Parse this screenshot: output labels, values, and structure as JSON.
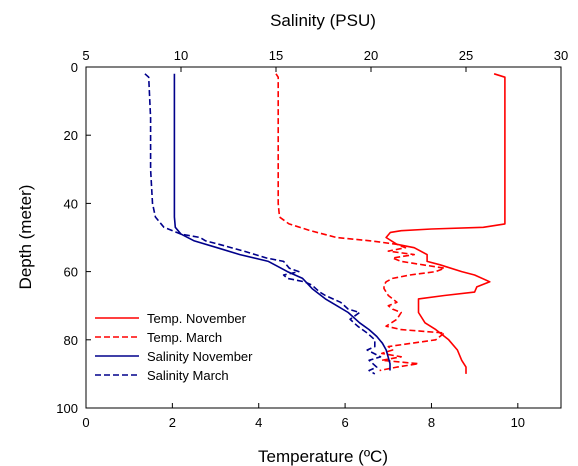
{
  "chart_data": {
    "type": "line",
    "orientation": "depth-profile",
    "y_axis": {
      "label": "Depth (meter)",
      "range": [
        0,
        100
      ],
      "inverted": true,
      "ticks": [
        0,
        20,
        40,
        60,
        80,
        100
      ]
    },
    "x_axis_bottom": {
      "label": "Temperature (ºC)",
      "range": [
        0,
        11
      ],
      "ticks": [
        0,
        2,
        4,
        6,
        8,
        10
      ]
    },
    "x_axis_top": {
      "label": "Salinity (PSU)",
      "range": [
        5,
        30
      ],
      "ticks": [
        5,
        10,
        15,
        20,
        25,
        30
      ]
    },
    "grid": false,
    "legend_position": "bottom-left",
    "series": [
      {
        "name": "Temp. November",
        "axis": "bottom",
        "color": "#ff0000",
        "dash": "solid",
        "points": [
          [
            9.45,
            2
          ],
          [
            9.7,
            3
          ],
          [
            9.7,
            20
          ],
          [
            9.7,
            40
          ],
          [
            9.7,
            46
          ],
          [
            9.2,
            47
          ],
          [
            8.0,
            47.5
          ],
          [
            7.3,
            48
          ],
          [
            7.05,
            48.5
          ],
          [
            6.95,
            50
          ],
          [
            7.2,
            52
          ],
          [
            7.6,
            53
          ],
          [
            7.9,
            55
          ],
          [
            7.9,
            57
          ],
          [
            8.2,
            58
          ],
          [
            8.7,
            60
          ],
          [
            9.0,
            61
          ],
          [
            9.35,
            63
          ],
          [
            9.05,
            64.5
          ],
          [
            9.0,
            66
          ],
          [
            8.3,
            67
          ],
          [
            7.7,
            68
          ],
          [
            7.7,
            72
          ],
          [
            7.85,
            75
          ],
          [
            8.1,
            77
          ],
          [
            8.4,
            80
          ],
          [
            8.6,
            83
          ],
          [
            8.7,
            86
          ],
          [
            8.8,
            88
          ],
          [
            8.8,
            90
          ]
        ]
      },
      {
        "name": "Temp. March",
        "axis": "bottom",
        "color": "#ff0000",
        "dash": "dashed",
        "points": [
          [
            4.4,
            2
          ],
          [
            4.45,
            3
          ],
          [
            4.45,
            20
          ],
          [
            4.45,
            40
          ],
          [
            4.48,
            44
          ],
          [
            4.7,
            46
          ],
          [
            5.2,
            48
          ],
          [
            5.8,
            50
          ],
          [
            6.6,
            51
          ],
          [
            7.2,
            52
          ],
          [
            7.4,
            53
          ],
          [
            7.0,
            54
          ],
          [
            7.6,
            55
          ],
          [
            7.1,
            56
          ],
          [
            7.3,
            57
          ],
          [
            7.8,
            58
          ],
          [
            8.3,
            59
          ],
          [
            8.1,
            60
          ],
          [
            7.5,
            61
          ],
          [
            7.1,
            62
          ],
          [
            6.95,
            63
          ],
          [
            6.9,
            64
          ],
          [
            6.9,
            65
          ],
          [
            7.0,
            67
          ],
          [
            7.2,
            69
          ],
          [
            7.0,
            70
          ],
          [
            7.1,
            71
          ],
          [
            7.3,
            72
          ],
          [
            7.2,
            74
          ],
          [
            6.95,
            76
          ],
          [
            7.3,
            77
          ],
          [
            8.3,
            78
          ],
          [
            8.1,
            80
          ],
          [
            7.0,
            82
          ],
          [
            7.1,
            83
          ],
          [
            6.85,
            84
          ],
          [
            7.3,
            85
          ],
          [
            6.85,
            86
          ],
          [
            7.7,
            87
          ],
          [
            7.2,
            88
          ],
          [
            6.8,
            89
          ]
        ]
      },
      {
        "name": "Salinity November",
        "axis": "top",
        "color": "#00008b",
        "dash": "solid",
        "points": [
          [
            9.65,
            2
          ],
          [
            9.65,
            10
          ],
          [
            9.65,
            30
          ],
          [
            9.65,
            44
          ],
          [
            9.7,
            47
          ],
          [
            10.0,
            49
          ],
          [
            10.7,
            51
          ],
          [
            11.9,
            53
          ],
          [
            13.1,
            55
          ],
          [
            14.6,
            57
          ],
          [
            15.6,
            60
          ],
          [
            16.4,
            62
          ],
          [
            16.9,
            65
          ],
          [
            17.6,
            68
          ],
          [
            18.2,
            70
          ],
          [
            18.8,
            72
          ],
          [
            19.4,
            75
          ],
          [
            19.9,
            77
          ],
          [
            20.3,
            79
          ],
          [
            20.6,
            81
          ],
          [
            20.8,
            83
          ],
          [
            20.9,
            85
          ],
          [
            21.0,
            87
          ],
          [
            21.0,
            89
          ]
        ]
      },
      {
        "name": "Salinity March",
        "axis": "top",
        "color": "#00008b",
        "dash": "dashed",
        "points": [
          [
            8.1,
            2
          ],
          [
            8.3,
            3
          ],
          [
            8.4,
            15
          ],
          [
            8.4,
            30
          ],
          [
            8.5,
            40
          ],
          [
            8.65,
            44
          ],
          [
            9.1,
            47
          ],
          [
            10.0,
            49
          ],
          [
            11.0,
            50
          ],
          [
            11.3,
            51
          ],
          [
            12.0,
            52
          ],
          [
            13.3,
            54
          ],
          [
            14.5,
            56
          ],
          [
            15.4,
            57
          ],
          [
            15.7,
            59
          ],
          [
            16.2,
            60
          ],
          [
            15.4,
            61
          ],
          [
            15.6,
            62
          ],
          [
            16.5,
            63
          ],
          [
            16.9,
            64
          ],
          [
            17.3,
            66
          ],
          [
            17.6,
            67
          ],
          [
            18.4,
            69
          ],
          [
            18.8,
            71
          ],
          [
            19.4,
            72
          ],
          [
            18.9,
            74
          ],
          [
            19.3,
            76
          ],
          [
            19.8,
            78
          ],
          [
            20.2,
            80
          ],
          [
            20.2,
            82
          ],
          [
            19.8,
            83
          ],
          [
            20.5,
            85
          ],
          [
            19.9,
            86
          ],
          [
            20.3,
            88
          ],
          [
            19.9,
            89
          ],
          [
            20.2,
            90
          ]
        ]
      }
    ]
  }
}
